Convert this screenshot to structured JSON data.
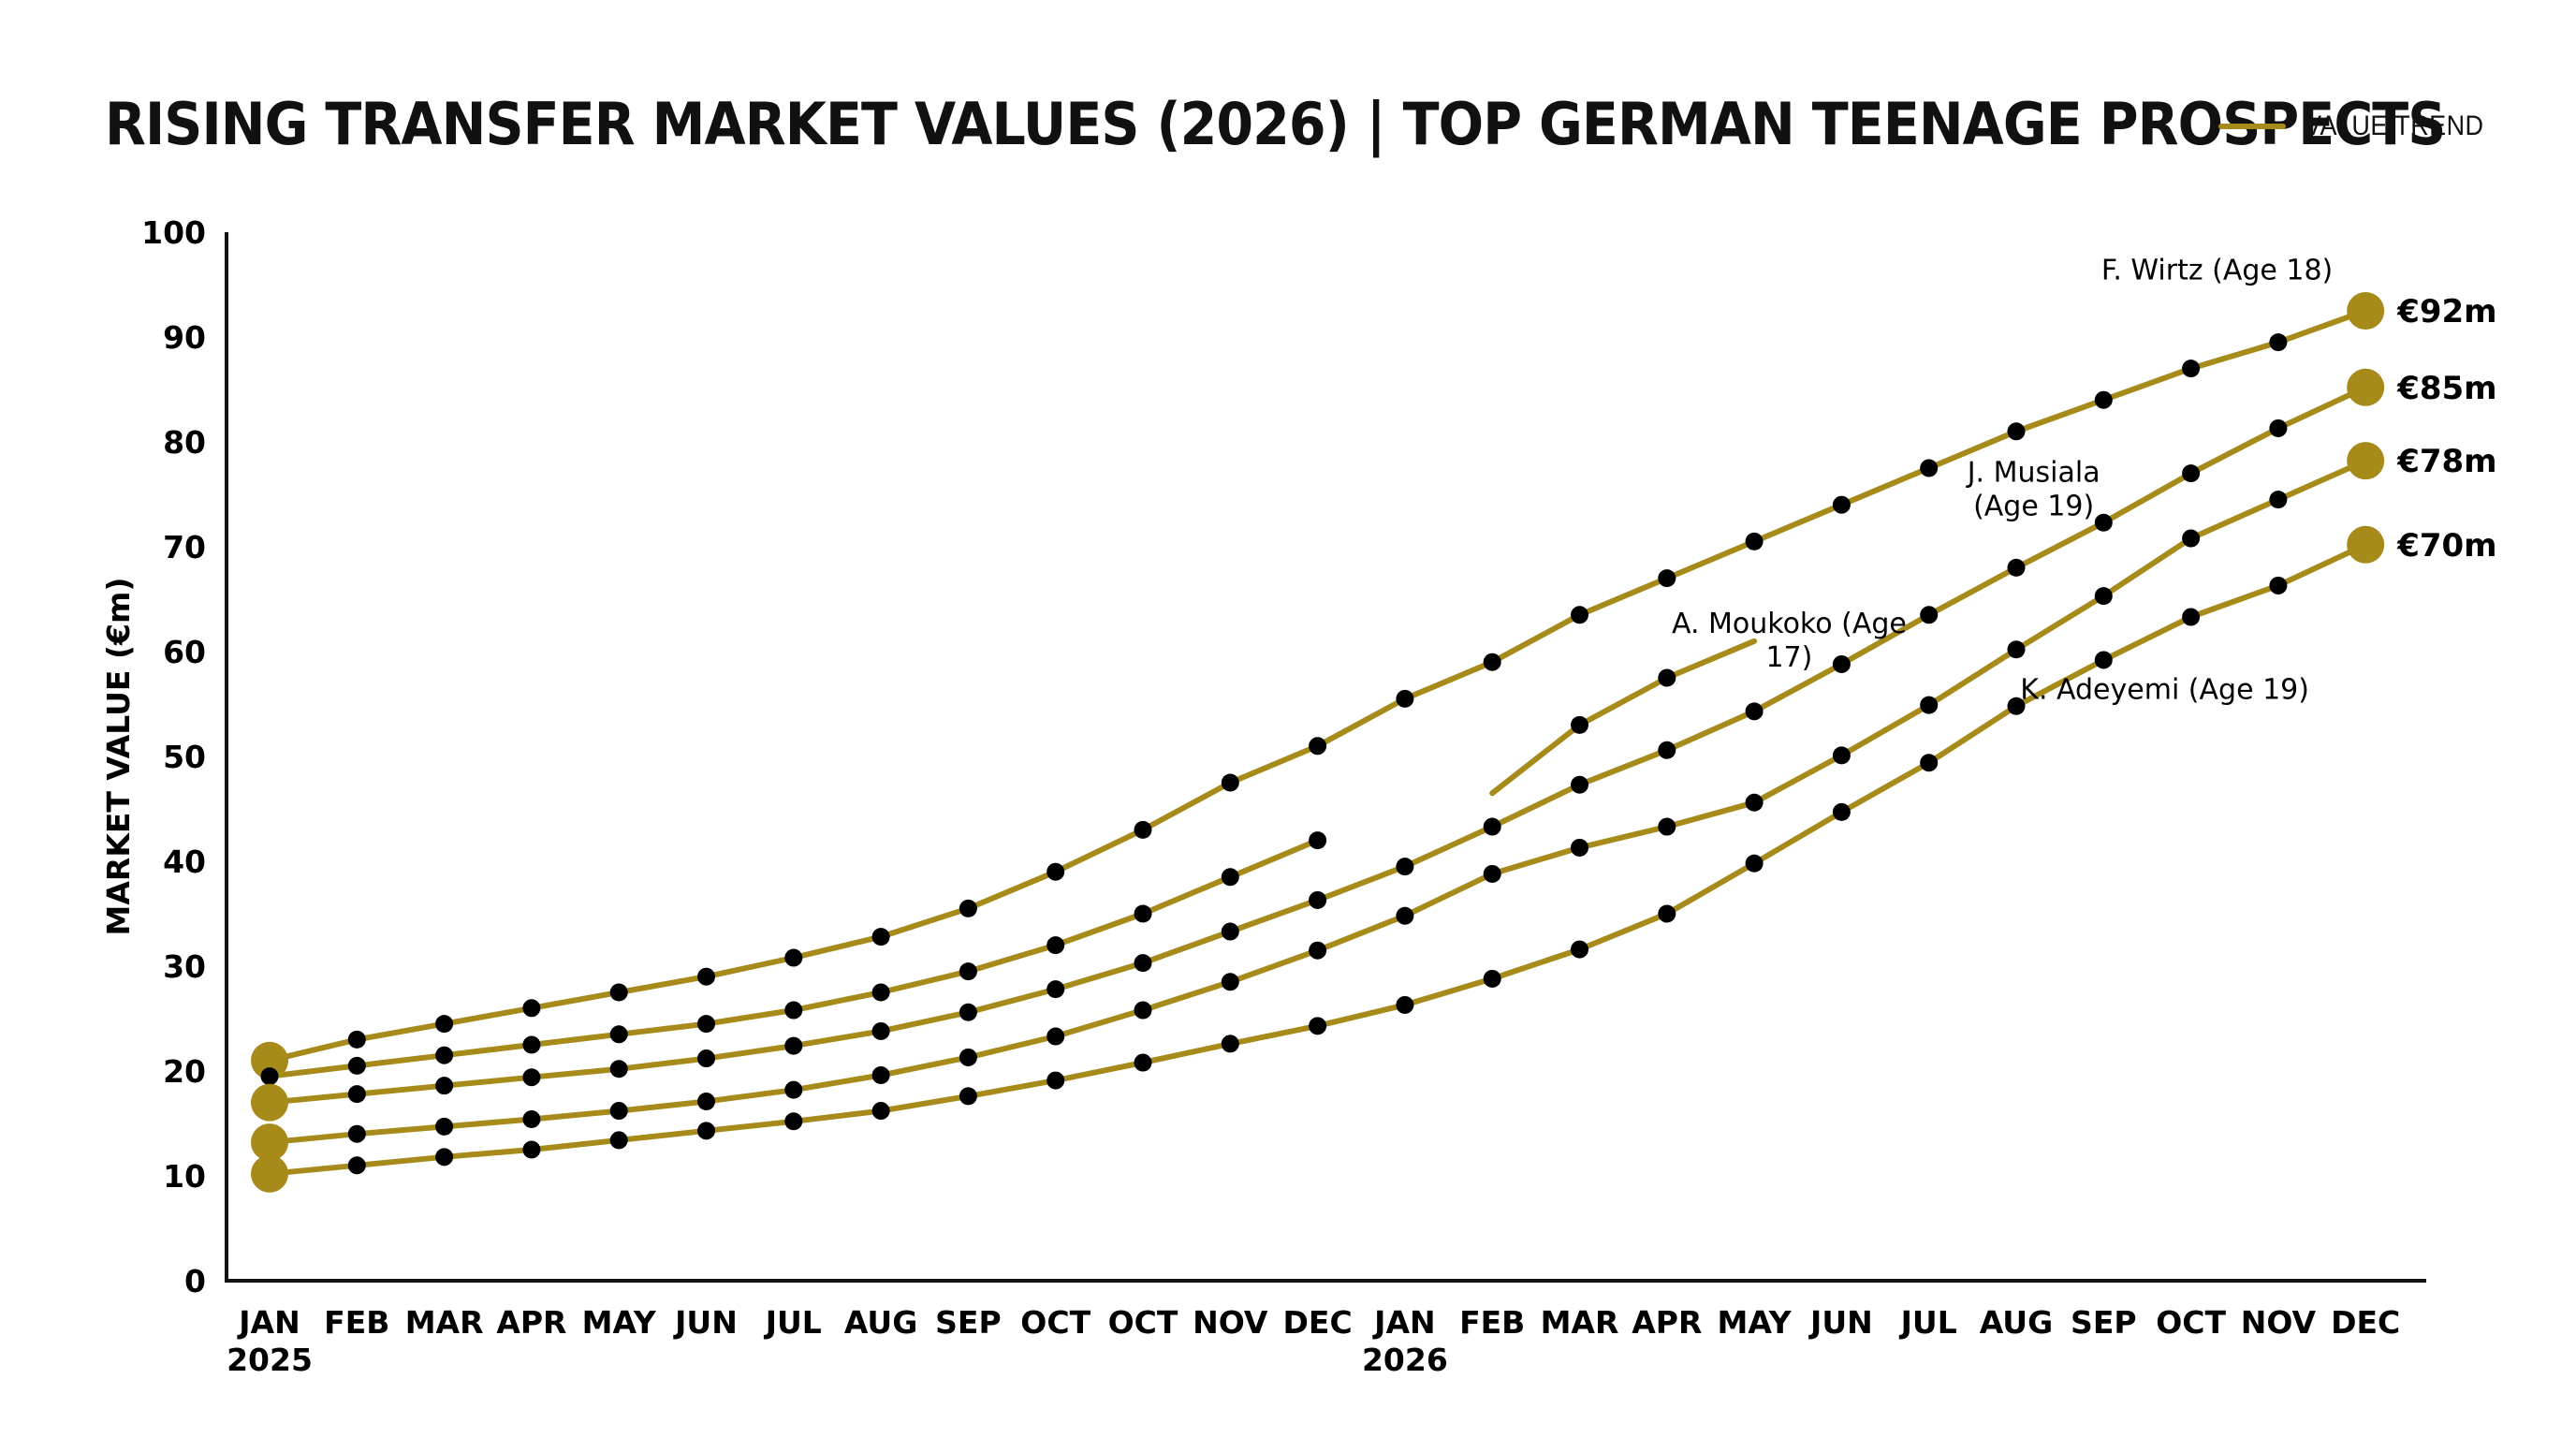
{
  "title": "RISING TRANSFER MARKET VALUES (2026) | TOP GERMAN TEENAGE PROSPECTS",
  "legend": {
    "label": "VALUE TREND",
    "color": "#a68a1a"
  },
  "colors": {
    "line": "#a68a1a",
    "marker": "#000000",
    "endpoint": "#a68a1a",
    "axis": "#111111"
  },
  "chart_data": {
    "type": "line",
    "title": "RISING TRANSFER MARKET VALUES (2026) | TOP GERMAN TEENAGE PROSPECTS",
    "ylabel": "MARKET VALUE (€m)",
    "xlabel": "",
    "ylim": [
      0,
      100
    ],
    "yticks": [
      0,
      10,
      20,
      30,
      40,
      50,
      60,
      70,
      80,
      90,
      100
    ],
    "grid": false,
    "legend_position": "top-right",
    "x_labels": [
      [
        "JAN",
        "2025"
      ],
      [
        "FEB",
        ""
      ],
      [
        "MAR",
        ""
      ],
      [
        "APR",
        ""
      ],
      [
        "MAY",
        ""
      ],
      [
        "JUN",
        ""
      ],
      [
        "JUL",
        ""
      ],
      [
        "AUG",
        ""
      ],
      [
        "SEP",
        ""
      ],
      [
        "OCT",
        ""
      ],
      [
        "OCT",
        ""
      ],
      [
        "NOV",
        ""
      ],
      [
        "DEC",
        ""
      ],
      [
        "JAN",
        "2026"
      ],
      [
        "FEB",
        ""
      ],
      [
        "MAR",
        ""
      ],
      [
        "APR",
        ""
      ],
      [
        "MAY",
        ""
      ],
      [
        "JUN",
        ""
      ],
      [
        "JUL",
        ""
      ],
      [
        "AUG",
        ""
      ],
      [
        "SEP",
        ""
      ],
      [
        "OCT",
        ""
      ],
      [
        "NOV",
        ""
      ],
      [
        "DEC",
        ""
      ]
    ],
    "series": [
      {
        "values": [
          21,
          23,
          24.5,
          26,
          27.5,
          29,
          30.8,
          32.8,
          35.5,
          39,
          43,
          47.5,
          51,
          55.5,
          59,
          63.5,
          67,
          70.5,
          74,
          77.5,
          81,
          84,
          87,
          89.5,
          92.5
        ],
        "endpoint_label": "€92m",
        "endpoint_at_start": true
      },
      {
        "values": [
          19.5,
          20.5,
          21.5,
          22.5,
          23.5,
          24.5,
          25.8,
          27.5,
          29.5,
          32,
          35,
          38.5,
          42
        ],
        "endpoint_at_start": false
      },
      {
        "values": [
          null,
          null,
          null,
          null,
          null,
          null,
          null,
          null,
          null,
          null,
          null,
          null,
          null,
          null,
          46.5,
          53,
          57.5,
          61
        ],
        "endpoint_at_start": false,
        "no_markers_at": [
          14,
          17
        ]
      },
      {
        "values": [
          17,
          17.8,
          18.6,
          19.4,
          20.2,
          21.2,
          22.4,
          23.8,
          25.6,
          27.8,
          30.3,
          33.3,
          36.3,
          39.5,
          43.3,
          47.3,
          50.6,
          54.3,
          58.8,
          63.5,
          68,
          72.3,
          77,
          81.3,
          85.2
        ],
        "endpoint_label": "€85m",
        "endpoint_at_start": true
      },
      {
        "values": [
          13.2,
          14,
          14.7,
          15.4,
          16.2,
          17.1,
          18.2,
          19.6,
          21.3,
          23.3,
          25.8,
          28.5,
          31.5,
          34.8,
          38.8,
          41.3,
          43.3,
          45.6,
          50.1,
          54.9,
          60.2,
          65.3,
          70.8,
          74.5,
          78.2
        ],
        "endpoint_label": "€78m",
        "endpoint_at_start": true
      },
      {
        "values": [
          10.2,
          11,
          11.8,
          12.5,
          13.4,
          14.3,
          15.2,
          16.2,
          17.6,
          19.1,
          20.8,
          22.6,
          24.3,
          26.3,
          28.8,
          31.6,
          35,
          39.8,
          44.7,
          49.4,
          54.8,
          59.2,
          63.3,
          66.3,
          70.2
        ],
        "endpoint_label": "€70m",
        "endpoint_at_start": true
      }
    ],
    "annotations": [
      {
        "lines": [
          "F. Wirtz (Age 18)"
        ],
        "x_index": 22.3,
        "y": 95.5
      },
      {
        "lines": [
          "J. Musiala",
          "(Age 19)"
        ],
        "x_index": 20.2,
        "y": 76.2
      },
      {
        "lines": [
          "A. Moukoko (Age",
          "17)"
        ],
        "x_index": 17.4,
        "y": 61.8
      },
      {
        "lines": [
          "K. Adeyemi (Age 19)"
        ],
        "x_index": 21.7,
        "y": 55.5
      }
    ]
  }
}
